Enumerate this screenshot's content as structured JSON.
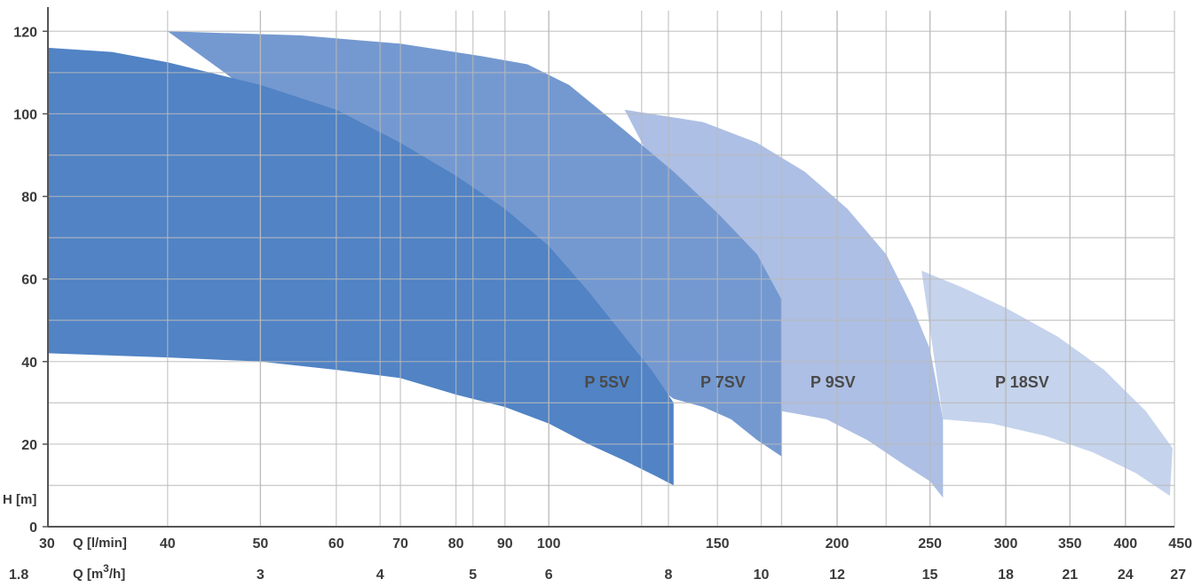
{
  "chart_data": {
    "type": "area",
    "title": "",
    "x_scale": "log",
    "x_range_lpm": [
      30,
      450
    ],
    "y_range": [
      0,
      125
    ],
    "grid": true,
    "ylabel": "H [m]",
    "xlabel_primary": "Q [l/min]",
    "xlabel_secondary_main": "Q [m",
    "xlabel_secondary_sup": "3",
    "xlabel_secondary_end": "/h]",
    "y_ticks": [
      {
        "value": 0,
        "label": "0"
      },
      {
        "value": 20,
        "label": "20"
      },
      {
        "value": 40,
        "label": "40"
      },
      {
        "value": 60,
        "label": "60"
      },
      {
        "value": 80,
        "label": "80"
      },
      {
        "value": 100,
        "label": "100"
      },
      {
        "value": 120,
        "label": "120"
      }
    ],
    "y_minor": [
      10,
      30,
      50,
      70,
      90,
      110
    ],
    "x_ticks_lpm": [
      {
        "value": 30,
        "label": "30"
      },
      {
        "value": 40,
        "label": "40"
      },
      {
        "value": 50,
        "label": "50"
      },
      {
        "value": 60,
        "label": "60"
      },
      {
        "value": 70,
        "label": "70"
      },
      {
        "value": 80,
        "label": "80"
      },
      {
        "value": 90,
        "label": "90"
      },
      {
        "value": 100,
        "label": "100"
      },
      {
        "value": 150,
        "label": "150"
      },
      {
        "value": 200,
        "label": "200"
      },
      {
        "value": 250,
        "label": "250"
      },
      {
        "value": 300,
        "label": "300"
      },
      {
        "value": 350,
        "label": "350"
      },
      {
        "value": 400,
        "label": "400"
      },
      {
        "value": 450,
        "label": "450"
      }
    ],
    "x_ticks_m3h": [
      {
        "value": 1.8,
        "label": "1.8"
      },
      {
        "value": 3,
        "label": "3"
      },
      {
        "value": 4,
        "label": "4"
      },
      {
        "value": 5,
        "label": "5"
      },
      {
        "value": 6,
        "label": "6"
      },
      {
        "value": 8,
        "label": "8"
      },
      {
        "value": 10,
        "label": "10"
      },
      {
        "value": 12,
        "label": "12"
      },
      {
        "value": 15,
        "label": "15"
      },
      {
        "value": 18,
        "label": "18"
      },
      {
        "value": 21,
        "label": "21"
      },
      {
        "value": 24,
        "label": "24"
      },
      {
        "value": 27,
        "label": "27"
      }
    ],
    "x_minor_lpm": [
      125,
      175,
      225
    ],
    "series": [
      {
        "name": "P 18SV",
        "color": "#c5d3ec",
        "label_at": [
          312,
          35
        ],
        "top": [
          [
            245,
            62
          ],
          [
            270,
            58
          ],
          [
            300,
            53
          ],
          [
            340,
            46
          ],
          [
            380,
            38
          ],
          [
            420,
            28
          ],
          [
            448,
            19
          ]
        ],
        "bottom": [
          [
            258,
            26
          ],
          [
            290,
            25
          ],
          [
            330,
            22
          ],
          [
            370,
            18
          ],
          [
            410,
            13
          ],
          [
            445,
            7.5
          ]
        ]
      },
      {
        "name": "P 9SV",
        "color": "#adbfe4",
        "label_at": [
          198,
          35
        ],
        "top": [
          [
            120,
            101
          ],
          [
            145,
            98
          ],
          [
            165,
            93
          ],
          [
            185,
            86
          ],
          [
            205,
            77
          ],
          [
            225,
            66
          ],
          [
            240,
            53
          ],
          [
            250,
            43
          ],
          [
            258,
            26
          ]
        ],
        "bottom": [
          [
            175,
            28
          ],
          [
            195,
            26
          ],
          [
            215,
            21
          ],
          [
            235,
            15
          ],
          [
            250,
            11
          ],
          [
            258,
            7
          ]
        ]
      },
      {
        "name": "P 7SV",
        "color": "#7499d0",
        "label_at": [
          152,
          35
        ],
        "top": [
          [
            40,
            120
          ],
          [
            55,
            119
          ],
          [
            70,
            117
          ],
          [
            85,
            114
          ],
          [
            95,
            112
          ],
          [
            105,
            107
          ],
          [
            120,
            96
          ],
          [
            135,
            86
          ],
          [
            150,
            76
          ],
          [
            165,
            66
          ],
          [
            175,
            55
          ]
        ],
        "bottom": [
          [
            135,
            31
          ],
          [
            145,
            29
          ],
          [
            155,
            26
          ],
          [
            165,
            21
          ],
          [
            175,
            17
          ]
        ]
      },
      {
        "name": "P 5SV",
        "color": "#5183c5",
        "label_at": [
          115,
          35
        ],
        "top": [
          [
            30,
            116
          ],
          [
            35,
            115
          ],
          [
            40,
            112.5
          ],
          [
            50,
            107
          ],
          [
            60,
            101
          ],
          [
            70,
            93
          ],
          [
            80,
            85
          ],
          [
            90,
            77
          ],
          [
            100,
            68
          ],
          [
            110,
            57
          ],
          [
            120,
            46
          ],
          [
            128,
            38
          ],
          [
            135,
            30
          ]
        ],
        "bottom": [
          [
            30,
            42
          ],
          [
            40,
            41
          ],
          [
            50,
            40
          ],
          [
            60,
            38
          ],
          [
            70,
            36
          ],
          [
            80,
            32
          ],
          [
            90,
            29
          ],
          [
            100,
            25
          ],
          [
            110,
            20
          ],
          [
            120,
            16
          ],
          [
            130,
            12
          ],
          [
            135,
            10
          ]
        ]
      }
    ]
  }
}
